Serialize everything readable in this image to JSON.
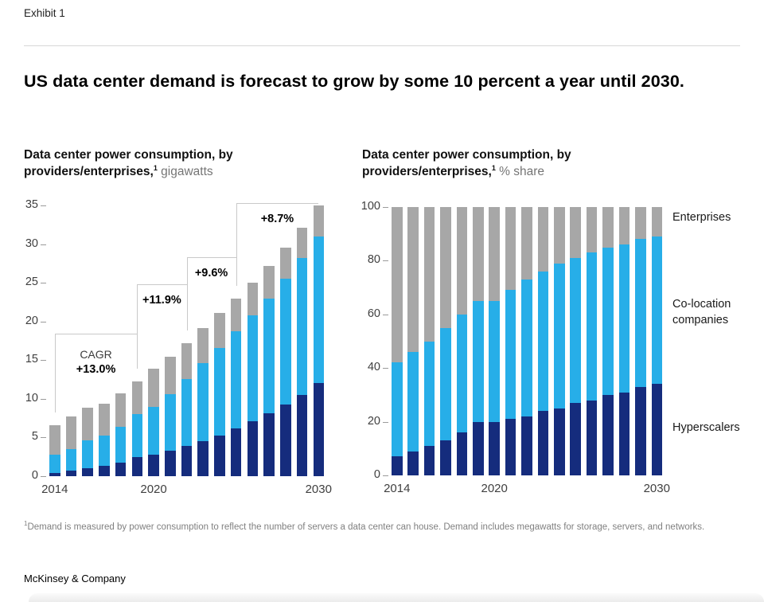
{
  "header": {
    "exhibit_label": "Exhibit 1",
    "title": "US data center demand is forecast to grow by some 10 percent a year until 2030."
  },
  "colors": {
    "hyperscalers": "#152C7D",
    "colocation": "#27AEE8",
    "enterprises": "#A7A7A7",
    "annotation_line": "#C9C9C9"
  },
  "chart_data": [
    {
      "type": "bar",
      "stacked": true,
      "subtitle_bold_line1": "Data center power consumption, by",
      "subtitle_bold_line2": "providers/enterprises,",
      "subtitle_sup": "1",
      "subtitle_unit": "gigawatts",
      "categories": [
        "2014",
        "2015",
        "2016",
        "2017",
        "2018",
        "2019",
        "2020",
        "2021",
        "2022",
        "2023",
        "2024",
        "2025",
        "2026",
        "2027",
        "2028",
        "2029",
        "2030"
      ],
      "ylim": [
        0,
        35
      ],
      "yticks": [
        0,
        5,
        10,
        15,
        20,
        25,
        30,
        35
      ],
      "xticks": [
        {
          "index": 0,
          "label": "2014"
        },
        {
          "index": 6,
          "label": "2020"
        },
        {
          "index": 16,
          "label": "2030"
        }
      ],
      "grid": false,
      "series": [
        {
          "name": "Hyperscalers",
          "color_key": "hyperscalers",
          "values": [
            0.4,
            0.7,
            1.0,
            1.3,
            1.8,
            2.5,
            2.8,
            3.3,
            3.9,
            4.5,
            5.3,
            6.2,
            7.1,
            8.1,
            9.3,
            10.5,
            12.0
          ]
        },
        {
          "name": "Co-location companies",
          "color_key": "colocation",
          "values": [
            2.4,
            2.8,
            3.6,
            3.9,
            4.6,
            5.5,
            6.2,
            7.3,
            8.7,
            10.1,
            11.3,
            12.5,
            13.7,
            14.9,
            16.2,
            17.7,
            19.0
          ]
        },
        {
          "name": "Enterprises",
          "color_key": "enterprises",
          "values": [
            3.8,
            4.2,
            4.3,
            4.2,
            4.3,
            4.3,
            4.9,
            4.8,
            4.6,
            4.6,
            4.5,
            4.3,
            4.2,
            4.2,
            4.0,
            3.9,
            4.0
          ]
        }
      ],
      "annotations": [
        {
          "lines": [
            "CAGR",
            "+13.0%"
          ],
          "from": 0,
          "to": 5,
          "top": 18.4
        },
        {
          "lines": [
            "+11.9%"
          ],
          "from": 5,
          "to": 8,
          "top": 24.8
        },
        {
          "lines": [
            "+9.6%"
          ],
          "from": 8,
          "to": 11,
          "top": 28.3
        },
        {
          "lines": [
            "+8.7%"
          ],
          "from": 11,
          "to": 16,
          "top": 35.3
        }
      ]
    },
    {
      "type": "bar",
      "stacked": true,
      "subtitle_bold_line1": "Data center power consumption, by",
      "subtitle_bold_line2": "providers/enterprises,",
      "subtitle_sup": "1",
      "subtitle_unit": "% share",
      "categories": [
        "2014",
        "2015",
        "2016",
        "2017",
        "2018",
        "2019",
        "2020",
        "2021",
        "2022",
        "2023",
        "2024",
        "2025",
        "2026",
        "2027",
        "2028",
        "2029",
        "2030"
      ],
      "ylim": [
        0,
        100
      ],
      "yticks": [
        0,
        20,
        40,
        60,
        80,
        100
      ],
      "xticks": [
        {
          "index": 0,
          "label": "2014"
        },
        {
          "index": 6,
          "label": "2020"
        },
        {
          "index": 16,
          "label": "2030"
        }
      ],
      "grid": false,
      "series": [
        {
          "name": "Hyperscalers",
          "color_key": "hyperscalers",
          "values": [
            7,
            9,
            11,
            13,
            16,
            20,
            20,
            21,
            22,
            24,
            25,
            27,
            28,
            30,
            31,
            33,
            34
          ]
        },
        {
          "name": "Co-location companies",
          "color_key": "colocation",
          "values": [
            35,
            37,
            39,
            42,
            44,
            45,
            45,
            48,
            51,
            52,
            54,
            54,
            55,
            55,
            55,
            55,
            55
          ]
        },
        {
          "name": "Enterprises",
          "color_key": "enterprises",
          "values": [
            58,
            54,
            50,
            45,
            40,
            35,
            35,
            31,
            27,
            24,
            21,
            19,
            17,
            15,
            14,
            12,
            11
          ]
        }
      ],
      "legend": [
        {
          "label": "Enterprises"
        },
        {
          "label": "Co-location companies"
        },
        {
          "label": "Hyperscalers"
        }
      ]
    }
  ],
  "footnote": {
    "sup": "1",
    "text": "Demand is measured by power consumption to reflect the number of servers a data center can house. Demand includes megawatts for storage, servers, and networks."
  },
  "footer": {
    "brand": "McKinsey & Company"
  }
}
